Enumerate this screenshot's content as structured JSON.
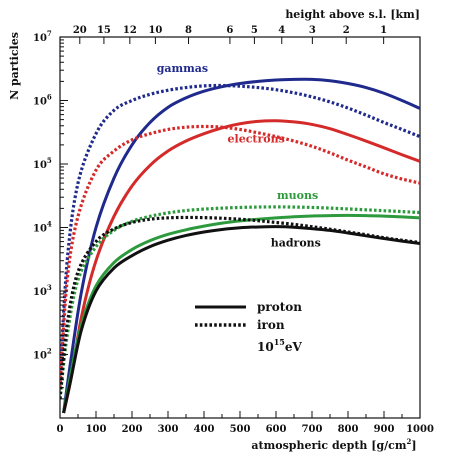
{
  "chart_data": {
    "type": "line",
    "xlabel": "atmospheric depth [g/cm²]",
    "x_unit": "g/cm",
    "x_unit_sup": "2",
    "x_label_prefix": "atmospheric depth [",
    "x_label_suffix": "]",
    "ylabel": "N particles",
    "top_axis_label": "height above s.l.  [km]",
    "xlim": [
      0,
      1000
    ],
    "ylim": [
      10,
      10000000
    ],
    "yscale": "log",
    "x_ticks": [
      0,
      100,
      200,
      300,
      400,
      500,
      600,
      700,
      800,
      900,
      1000
    ],
    "y_ticks": [
      {
        "base": "10",
        "exp": "2",
        "value": 100
      },
      {
        "base": "10",
        "exp": "3",
        "value": 1000
      },
      {
        "base": "10",
        "exp": "4",
        "value": 10000
      },
      {
        "base": "10",
        "exp": "5",
        "value": 100000
      },
      {
        "base": "10",
        "exp": "6",
        "value": 1000000
      },
      {
        "base": "10",
        "exp": "7",
        "value": 10000000
      }
    ],
    "top_ticks": [
      {
        "label": "20",
        "depth": 55
      },
      {
        "label": "15",
        "depth": 122
      },
      {
        "label": "12",
        "depth": 194
      },
      {
        "label": "10",
        "depth": 265
      },
      {
        "label": "8",
        "depth": 357
      },
      {
        "label": "6",
        "depth": 472
      },
      {
        "label": "5",
        "depth": 540
      },
      {
        "label": "4",
        "depth": 616
      },
      {
        "label": "3",
        "depth": 701
      },
      {
        "label": "2",
        "depth": 795
      },
      {
        "label": "1",
        "depth": 899
      }
    ],
    "annotations": [
      {
        "text": "gammas",
        "x": 340,
        "y": 2800000,
        "color": "#1f2a8c"
      },
      {
        "text": "electrons",
        "x": 545,
        "y": 220000,
        "color": "#d42a2a"
      },
      {
        "text": "muons",
        "x": 660,
        "y": 28000,
        "color": "#2e9a3e"
      },
      {
        "text": "hadrons",
        "x": 655,
        "y": 5000,
        "color": "#111111"
      }
    ],
    "legend": {
      "entries": [
        {
          "label": "proton",
          "style": "solid"
        },
        {
          "label": "iron",
          "style": "dotted"
        }
      ],
      "energy_base": "10",
      "energy_exp": "15",
      "energy_unit": "eV"
    },
    "grid": false,
    "series": [
      {
        "color": "#1f2a8c",
        "style": "solid",
        "x": [
          10,
          30,
          60,
          100,
          150,
          200,
          250,
          300,
          350,
          400,
          450,
          500,
          550,
          600,
          650,
          700,
          750,
          800,
          850,
          900,
          950,
          1000
        ],
        "y": [
          12,
          80,
          1000,
          10000,
          60000,
          200000,
          450000,
          780000,
          1100000,
          1400000,
          1650000,
          1850000,
          2000000,
          2100000,
          2150000,
          2150000,
          2050000,
          1850000,
          1600000,
          1300000,
          1000000,
          750000
        ]
      },
      {
        "color": "#1f2a8c",
        "style": "dotted",
        "x": [
          0,
          20,
          50,
          100,
          150,
          200,
          250,
          300,
          350,
          400,
          450,
          500,
          550,
          600,
          650,
          700,
          750,
          800,
          850,
          900,
          950,
          1000
        ],
        "y": [
          40,
          3000,
          50000,
          300000,
          700000,
          1000000,
          1250000,
          1450000,
          1600000,
          1700000,
          1720000,
          1680000,
          1600000,
          1480000,
          1320000,
          1140000,
          950000,
          760000,
          590000,
          450000,
          350000,
          270000
        ]
      },
      {
        "color": "#d42a2a",
        "style": "solid",
        "x": [
          10,
          30,
          60,
          100,
          150,
          200,
          250,
          300,
          350,
          400,
          450,
          500,
          550,
          600,
          650,
          700,
          750,
          800,
          850,
          900,
          950,
          1000
        ],
        "y": [
          12,
          40,
          400,
          3000,
          15000,
          45000,
          95000,
          160000,
          230000,
          300000,
          370000,
          430000,
          470000,
          480000,
          460000,
          420000,
          360000,
          290000,
          230000,
          180000,
          140000,
          110000
        ]
      },
      {
        "color": "#d42a2a",
        "style": "dotted",
        "x": [
          0,
          20,
          50,
          100,
          150,
          200,
          250,
          300,
          350,
          400,
          450,
          500,
          550,
          600,
          650,
          700,
          750,
          800,
          850,
          900,
          950,
          1000
        ],
        "y": [
          30,
          1500,
          15000,
          80000,
          160000,
          240000,
          300000,
          350000,
          380000,
          390000,
          380000,
          350000,
          310000,
          270000,
          230000,
          190000,
          150000,
          115000,
          90000,
          70000,
          58000,
          50000
        ]
      },
      {
        "color": "#2e9a3e",
        "style": "solid",
        "x": [
          10,
          30,
          60,
          100,
          150,
          200,
          250,
          300,
          350,
          400,
          450,
          500,
          550,
          600,
          650,
          700,
          750,
          800,
          850,
          900,
          950,
          1000
        ],
        "y": [
          12,
          50,
          300,
          1200,
          2800,
          4500,
          6200,
          7800,
          9200,
          10500,
          11700,
          12700,
          13500,
          14200,
          14800,
          15200,
          15400,
          15500,
          15400,
          15100,
          14700,
          14200
        ]
      },
      {
        "color": "#2e9a3e",
        "style": "dotted",
        "x": [
          0,
          20,
          50,
          100,
          150,
          200,
          250,
          300,
          350,
          400,
          450,
          500,
          550,
          600,
          650,
          700,
          750,
          800,
          850,
          900,
          950,
          1000
        ],
        "y": [
          20,
          200,
          1500,
          5000,
          9000,
          12500,
          15000,
          17000,
          18500,
          19500,
          20200,
          20700,
          21000,
          21100,
          21000,
          20700,
          20200,
          19600,
          19000,
          18400,
          17800,
          17200
        ]
      },
      {
        "color": "#111111",
        "style": "solid",
        "x": [
          10,
          30,
          60,
          100,
          150,
          200,
          250,
          300,
          350,
          400,
          450,
          500,
          550,
          600,
          650,
          700,
          750,
          800,
          850,
          900,
          950,
          1000
        ],
        "y": [
          12,
          40,
          250,
          1000,
          2300,
          3600,
          5000,
          6300,
          7500,
          8500,
          9300,
          9900,
          10200,
          10300,
          10100,
          9600,
          9000,
          8200,
          7400,
          6700,
          6100,
          5600
        ]
      },
      {
        "color": "#111111",
        "style": "dotted",
        "x": [
          0,
          20,
          50,
          100,
          150,
          200,
          250,
          300,
          350,
          400,
          450,
          500,
          550,
          600,
          650,
          700,
          750,
          800,
          850,
          900,
          950,
          1000
        ],
        "y": [
          20,
          300,
          2000,
          6000,
          9500,
          12000,
          13500,
          14200,
          14400,
          14300,
          14000,
          13500,
          12800,
          12000,
          11200,
          10300,
          9400,
          8500,
          7700,
          6900,
          6300,
          5800
        ]
      }
    ]
  }
}
